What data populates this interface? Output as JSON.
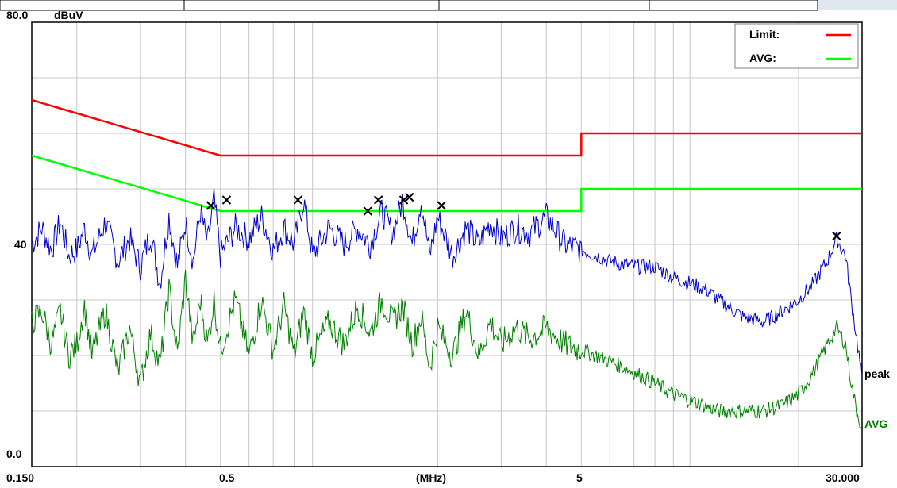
{
  "header": {
    "ylim_top_label": "80.0",
    "unit_label": "dBuV"
  },
  "legend": {
    "entries": [
      {
        "label": "Limit:",
        "color": "#ff0000"
      },
      {
        "label": "AVG:",
        "color": "#00ff00"
      }
    ]
  },
  "trace_labels": {
    "peak": "peak",
    "avg": "AVG"
  },
  "chart_data": {
    "type": "line",
    "xlabel": "(MHz)",
    "ylabel": "dBuV",
    "x_scale": "log",
    "xlim": [
      0.15,
      30.0
    ],
    "ylim": [
      0,
      80
    ],
    "x_tick_labels": [
      {
        "value": 0.15,
        "text": "0.150"
      },
      {
        "value": 0.5,
        "text": "0.5"
      },
      {
        "value": 5,
        "text": "5"
      },
      {
        "value": 30,
        "text": "30.000"
      }
    ],
    "y_tick_labels": [
      {
        "value": 80,
        "text": "80.0"
      },
      {
        "value": 40,
        "text": "40"
      },
      {
        "value": 0,
        "text": "0.0"
      }
    ],
    "grid": true,
    "legend_position": "top-right",
    "series": [
      {
        "name": "Limit",
        "color": "#ff0000",
        "x": [
          0.15,
          0.5,
          0.5,
          5,
          5,
          30
        ],
        "y": [
          66,
          56,
          56,
          56,
          60,
          60
        ]
      },
      {
        "name": "AVG",
        "color": "#00ff00",
        "x": [
          0.15,
          0.5,
          0.5,
          5,
          5,
          30
        ],
        "y": [
          56,
          46,
          46,
          46,
          50,
          50
        ]
      },
      {
        "name": "peak",
        "color": "#0000cc",
        "x": [
          0.15,
          0.16,
          0.17,
          0.18,
          0.19,
          0.2,
          0.21,
          0.22,
          0.24,
          0.26,
          0.28,
          0.3,
          0.32,
          0.34,
          0.36,
          0.38,
          0.4,
          0.42,
          0.44,
          0.46,
          0.48,
          0.5,
          0.55,
          0.6,
          0.65,
          0.7,
          0.75,
          0.8,
          0.85,
          0.9,
          1.0,
          1.1,
          1.2,
          1.3,
          1.4,
          1.5,
          1.6,
          1.7,
          1.8,
          1.9,
          2.0,
          2.2,
          2.4,
          2.6,
          2.8,
          3.0,
          3.3,
          3.6,
          4.0,
          4.5,
          5.0,
          5.5,
          6.0,
          7.0,
          8.0,
          9.0,
          10.0,
          11.0,
          12.0,
          14.0,
          16.0,
          18.0,
          20.0,
          22.0,
          24.0,
          25.5,
          27.0,
          28.0,
          29.0,
          30.0
        ],
        "y": [
          40,
          43,
          39,
          44,
          38,
          39,
          43,
          38,
          44,
          37,
          41,
          36,
          42,
          33,
          45,
          36,
          44,
          37,
          46,
          40,
          48,
          38,
          43,
          41,
          45,
          39,
          43,
          40,
          48,
          38,
          43,
          40,
          43,
          40,
          46,
          42,
          48,
          40,
          48,
          38,
          45,
          38,
          43,
          40,
          44,
          41,
          43,
          42,
          45,
          40,
          39,
          38,
          37,
          36,
          36,
          34,
          33,
          32,
          30,
          27,
          26,
          28,
          30,
          33,
          37,
          41,
          38,
          30,
          23,
          16
        ]
      },
      {
        "name": "AVG",
        "color": "#008000",
        "x": [
          0.15,
          0.16,
          0.17,
          0.18,
          0.19,
          0.2,
          0.21,
          0.22,
          0.24,
          0.26,
          0.28,
          0.3,
          0.32,
          0.34,
          0.36,
          0.38,
          0.4,
          0.42,
          0.44,
          0.46,
          0.48,
          0.5,
          0.55,
          0.6,
          0.65,
          0.7,
          0.75,
          0.8,
          0.85,
          0.9,
          1.0,
          1.1,
          1.2,
          1.3,
          1.4,
          1.5,
          1.6,
          1.7,
          1.8,
          1.9,
          2.0,
          2.2,
          2.4,
          2.6,
          2.8,
          3.0,
          3.3,
          3.6,
          4.0,
          4.5,
          5.0,
          5.5,
          6.0,
          7.0,
          8.0,
          9.0,
          10.0,
          11.0,
          12.0,
          14.0,
          16.0,
          18.0,
          20.0,
          22.0,
          24.0,
          25.5,
          27.0,
          28.0,
          29.0,
          30.0
        ],
        "y": [
          26,
          28,
          22,
          28,
          20,
          22,
          29,
          20,
          28,
          17,
          25,
          15,
          24,
          18,
          32,
          20,
          34,
          22,
          30,
          22,
          30,
          21,
          30,
          20,
          30,
          21,
          29,
          20,
          28,
          20,
          26,
          22,
          29,
          24,
          30,
          26,
          29,
          22,
          27,
          18,
          25,
          20,
          28,
          20,
          26,
          22,
          25,
          23,
          25,
          22,
          21,
          20,
          19,
          17,
          15,
          13,
          12,
          11,
          10,
          10,
          10,
          11,
          13,
          17,
          22,
          25,
          22,
          15,
          10,
          7
        ]
      }
    ],
    "markers": {
      "symbol": "x",
      "points": [
        {
          "x": 0.47,
          "y": 47
        },
        {
          "x": 0.52,
          "y": 48
        },
        {
          "x": 0.82,
          "y": 48
        },
        {
          "x": 1.28,
          "y": 46
        },
        {
          "x": 1.37,
          "y": 48
        },
        {
          "x": 1.61,
          "y": 48
        },
        {
          "x": 1.67,
          "y": 48.5
        },
        {
          "x": 2.05,
          "y": 47
        },
        {
          "x": 25.5,
          "y": 41.5
        }
      ]
    }
  }
}
